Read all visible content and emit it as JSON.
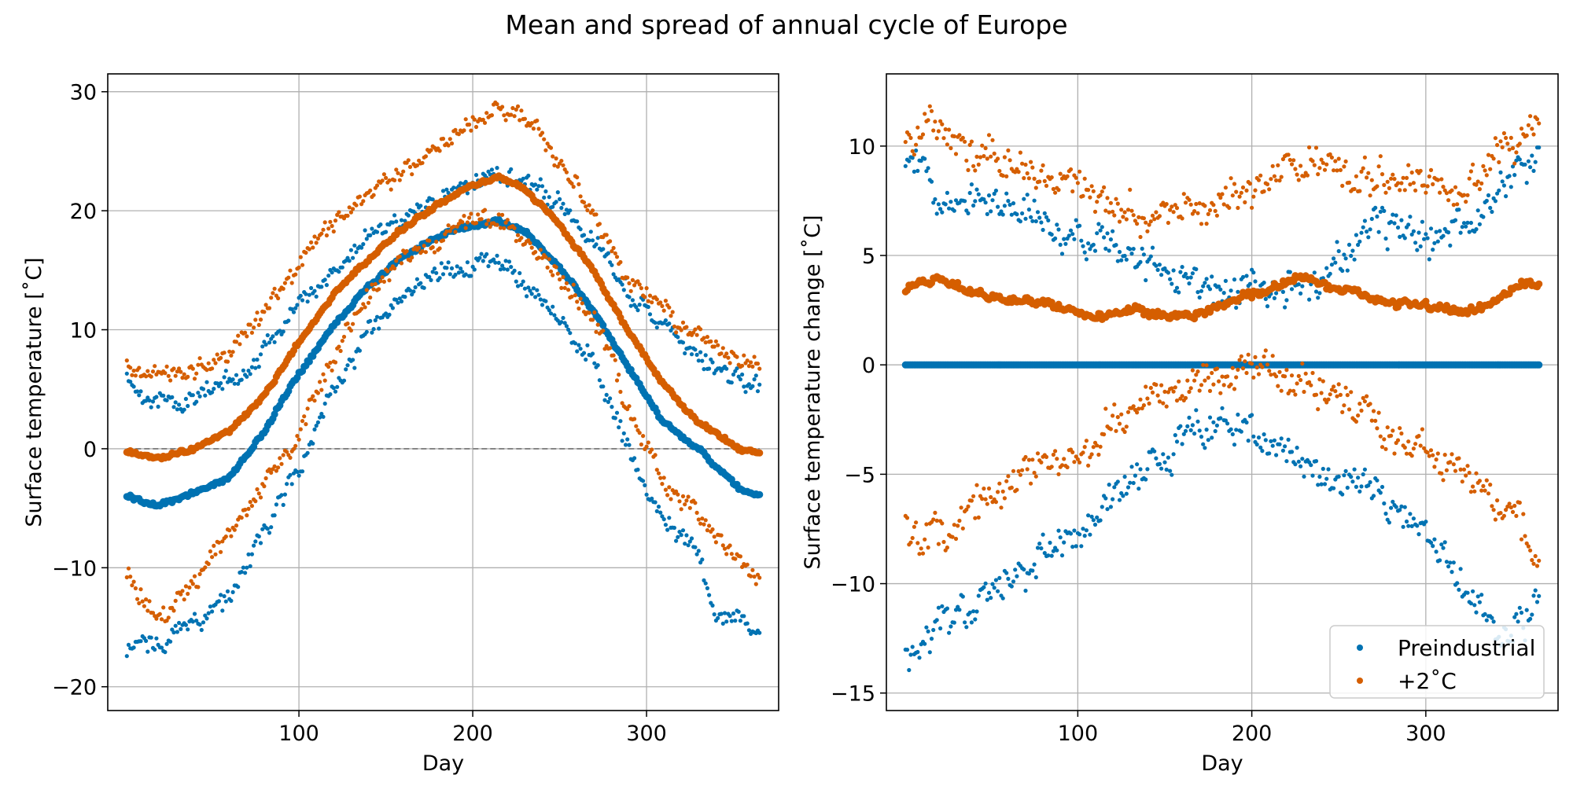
{
  "title": "Mean and spread of annual cycle of Europe",
  "colors": {
    "preindustrial": "#0072B2",
    "warm": "#D55E00",
    "grid": "#b0b0b0",
    "zero_line": "#808080"
  },
  "chart_data": [
    {
      "type": "scatter",
      "panel": "left",
      "xlabel": "Day",
      "ylabel": "Surface temperature [˚C]",
      "xlim": [
        -10,
        376
      ],
      "ylim": [
        -22,
        31.5
      ],
      "x_ticks": [
        100,
        200,
        300
      ],
      "x_tick_labels": [
        "100",
        "200",
        "300"
      ],
      "y_ticks": [
        -20,
        -10,
        0,
        10,
        20,
        30
      ],
      "y_tick_labels": [
        "−20",
        "−10",
        "0",
        "10",
        "20",
        "30"
      ],
      "grid": true,
      "zero_reference_line": "dashed",
      "series": [
        {
          "key": "preindustrial",
          "role": "mean",
          "color": "#0072B2",
          "knots_x": [
            1,
            20,
            40,
            60,
            80,
            100,
            120,
            140,
            160,
            180,
            200,
            215,
            230,
            250,
            270,
            290,
            310,
            330,
            345,
            355,
            365
          ],
          "knots_y": [
            -4,
            -4.8,
            -3.6,
            -2.5,
            1.5,
            6.3,
            10.5,
            13.6,
            16.2,
            17.8,
            18.8,
            19.2,
            18.2,
            15.3,
            11.4,
            6.8,
            2.2,
            0.0,
            -2.3,
            -3.6,
            -4.0
          ]
        },
        {
          "key": "preindustrial",
          "role": "upper",
          "color": "#0072B2",
          "knots_x": [
            1,
            20,
            40,
            60,
            80,
            100,
            120,
            140,
            160,
            180,
            200,
            215,
            230,
            250,
            270,
            290,
            310,
            330,
            345,
            365
          ],
          "knots_y": [
            6,
            3.8,
            4.2,
            5.5,
            8.5,
            12,
            15,
            18,
            19.5,
            21,
            22.5,
            23,
            22.5,
            21,
            17.5,
            13,
            10.2,
            7.5,
            6,
            5.5
          ]
        },
        {
          "key": "preindustrial",
          "role": "lower",
          "color": "#0072B2",
          "knots_x": [
            1,
            20,
            40,
            60,
            80,
            100,
            120,
            140,
            160,
            180,
            200,
            215,
            230,
            250,
            270,
            280,
            290,
            300,
            310,
            320,
            330,
            340,
            355,
            365
          ],
          "knots_y": [
            -17,
            -16,
            -14.5,
            -12.5,
            -7,
            -2,
            5,
            9.5,
            12.5,
            14.5,
            15.5,
            16,
            14,
            11,
            7,
            4,
            0,
            -3.5,
            -6,
            -7.5,
            -8.5,
            -14,
            -14.5,
            -16
          ]
        },
        {
          "key": "warm",
          "role": "mean",
          "color": "#D55E00",
          "knots_x": [
            1,
            20,
            40,
            60,
            80,
            100,
            120,
            140,
            160,
            180,
            200,
            215,
            230,
            250,
            270,
            290,
            310,
            330,
            345,
            355,
            365
          ],
          "knots_y": [
            -0.3,
            -0.8,
            0,
            1.5,
            4.5,
            9.0,
            13.0,
            16.0,
            18.5,
            20.5,
            22.2,
            22.8,
            21.8,
            18.8,
            14.8,
            9.8,
            5.3,
            2.3,
            0.8,
            0,
            -0.4
          ]
        },
        {
          "key": "warm",
          "role": "upper",
          "color": "#D55E00",
          "knots_x": [
            1,
            20,
            40,
            60,
            80,
            100,
            120,
            140,
            160,
            180,
            200,
            215,
            230,
            250,
            270,
            290,
            310,
            330,
            345,
            365
          ],
          "knots_y": [
            7,
            6.5,
            6.5,
            8,
            11.5,
            15.5,
            19,
            21,
            23.5,
            25.5,
            27,
            28.8,
            27.5,
            24,
            19.5,
            14.5,
            11.5,
            9.5,
            8,
            6.5
          ]
        },
        {
          "key": "warm",
          "role": "lower",
          "color": "#D55E00",
          "knots_x": [
            1,
            20,
            40,
            60,
            80,
            100,
            120,
            140,
            160,
            180,
            200,
            215,
            230,
            250,
            270,
            280,
            290,
            300,
            310,
            320,
            330,
            340,
            355,
            365
          ],
          "knots_y": [
            -10.5,
            -14,
            -11,
            -7,
            -3,
            1,
            8,
            13,
            15.5,
            17.5,
            19,
            19.3,
            17.5,
            14.5,
            10.5,
            8,
            3.5,
            0.5,
            -3,
            -5,
            -5.5,
            -7.5,
            -9.5,
            -10.5
          ]
        }
      ]
    },
    {
      "type": "scatter",
      "panel": "right",
      "xlabel": "Day",
      "ylabel": "Surface temperature change [˚C]",
      "xlim": [
        -10,
        376
      ],
      "ylim": [
        -15.8,
        13.3
      ],
      "x_ticks": [
        100,
        200,
        300
      ],
      "x_tick_labels": [
        "100",
        "200",
        "300"
      ],
      "y_ticks": [
        -15,
        -10,
        -5,
        0,
        5,
        10
      ],
      "y_tick_labels": [
        "−15",
        "−10",
        "−5",
        "0",
        "5",
        "10"
      ],
      "grid": true,
      "legend": {
        "location": "lower right",
        "entries": [
          "Preindustrial",
          "+2˚C"
        ]
      },
      "series": [
        {
          "key": "preindustrial",
          "role": "mean",
          "color": "#0072B2",
          "knots_x": [
            1,
            365
          ],
          "knots_y": [
            0,
            0
          ]
        },
        {
          "key": "preindustrial",
          "role": "upper",
          "color": "#0072B2",
          "knots_x": [
            1,
            20,
            40,
            60,
            80,
            100,
            120,
            140,
            160,
            180,
            200,
            215,
            230,
            250,
            270,
            290,
            310,
            330,
            345,
            365
          ],
          "knots_y": [
            9.5,
            8,
            8,
            7.5,
            6.5,
            6,
            5.5,
            4.5,
            4,
            3.2,
            3.5,
            3,
            3.5,
            4.5,
            6.5,
            6,
            6,
            6.5,
            8,
            9.5
          ]
        },
        {
          "key": "preindustrial",
          "role": "lower",
          "color": "#0072B2",
          "knots_x": [
            1,
            20,
            40,
            60,
            80,
            100,
            120,
            140,
            160,
            180,
            200,
            215,
            230,
            250,
            270,
            290,
            310,
            330,
            345,
            365
          ],
          "knots_y": [
            -13,
            -12,
            -11,
            -10,
            -9,
            -8,
            -6,
            -4.5,
            -3.5,
            -3,
            -3,
            -3.5,
            -4.5,
            -5,
            -6,
            -7.5,
            -9,
            -11,
            -13,
            -10.5
          ]
        },
        {
          "key": "warm",
          "role": "mean",
          "color": "#D55E00",
          "knots_x": [
            1,
            20,
            40,
            60,
            80,
            100,
            110,
            130,
            150,
            170,
            190,
            210,
            235,
            250,
            270,
            290,
            310,
            320,
            340,
            355,
            365
          ],
          "knots_y": [
            3.5,
            4,
            3.3,
            3,
            2.8,
            2.4,
            2.0,
            2.5,
            2.2,
            2.4,
            3.0,
            3.5,
            4.0,
            3.5,
            3.0,
            2.8,
            2.6,
            2.3,
            2.8,
            3.8,
            3.6
          ]
        },
        {
          "key": "warm",
          "role": "upper",
          "color": "#D55E00",
          "knots_x": [
            1,
            20,
            40,
            60,
            80,
            100,
            120,
            140,
            160,
            180,
            200,
            215,
            230,
            250,
            270,
            290,
            310,
            330,
            345,
            365
          ],
          "knots_y": [
            10.5,
            11,
            10,
            9.5,
            8.5,
            8,
            7.5,
            6.5,
            7,
            7.5,
            8,
            9,
            9,
            9,
            8.5,
            8,
            7.5,
            8.5,
            9.5,
            11
          ]
        },
        {
          "key": "warm",
          "role": "lower",
          "color": "#D55E00",
          "knots_x": [
            1,
            20,
            40,
            60,
            80,
            100,
            120,
            140,
            160,
            180,
            200,
            215,
            230,
            250,
            270,
            290,
            310,
            330,
            345,
            365
          ],
          "knots_y": [
            -7,
            -8.5,
            -6.5,
            -5.5,
            -4.5,
            -4,
            -2.5,
            -1.5,
            -1,
            -0.5,
            0,
            -0.5,
            -0.8,
            -1.5,
            -2.5,
            -3.5,
            -4.5,
            -5.5,
            -6,
            -9
          ]
        }
      ]
    }
  ]
}
